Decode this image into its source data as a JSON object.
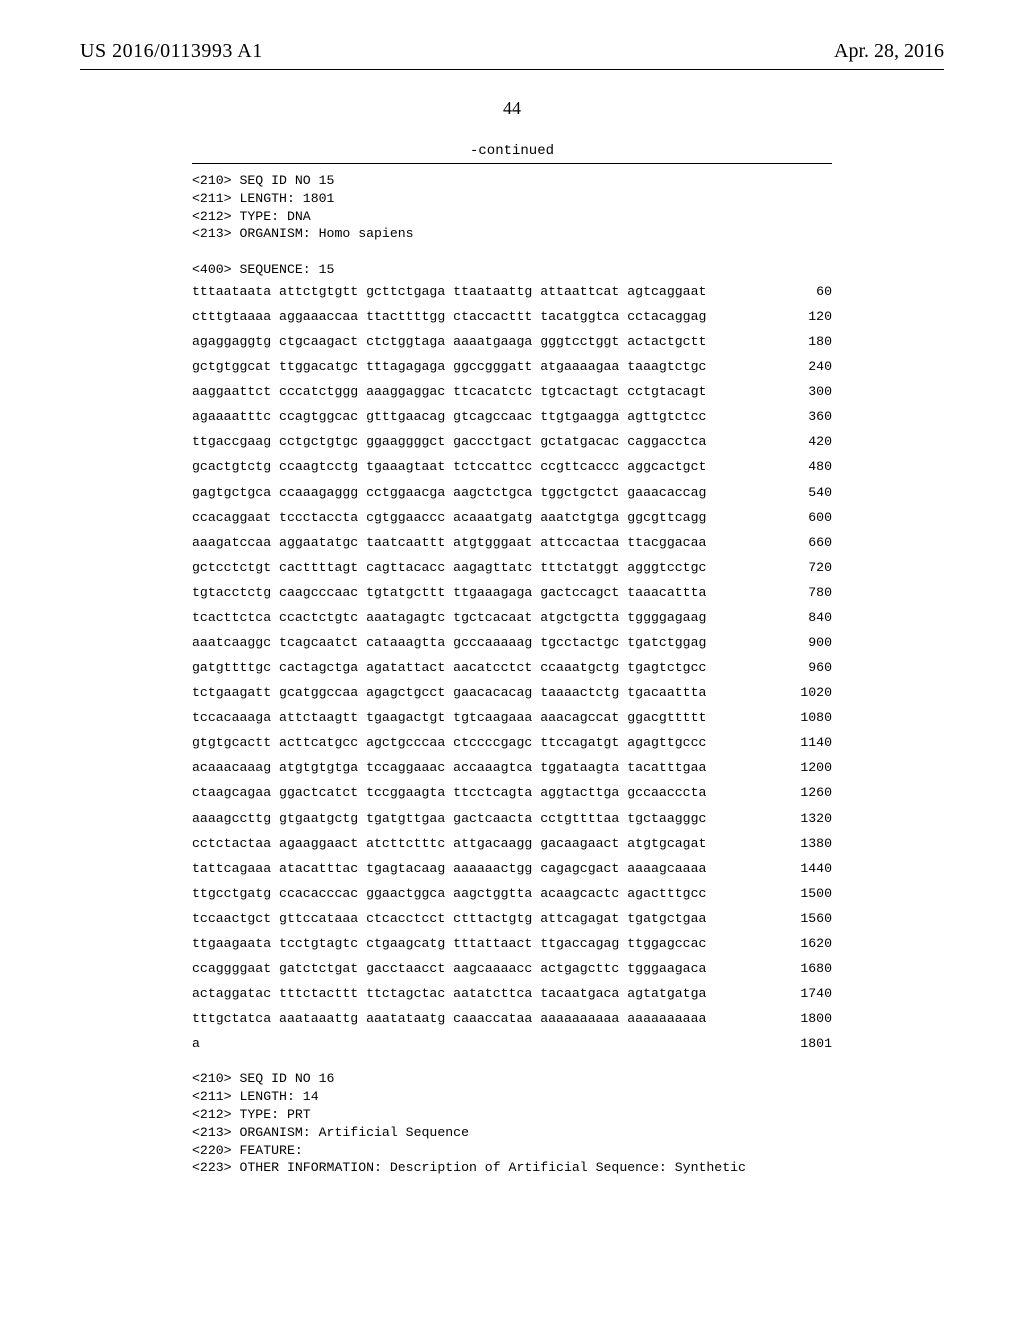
{
  "header": {
    "publication_id": "US 2016/0113993 A1",
    "publication_date": "Apr. 28, 2016"
  },
  "page_number": "44",
  "continued_label": "-continued",
  "meta_top": [
    "<210> SEQ ID NO 15",
    "<211> LENGTH: 1801",
    "<212> TYPE: DNA",
    "<213> ORGANISM: Homo sapiens",
    "",
    "<400> SEQUENCE: 15"
  ],
  "sequence": [
    {
      "txt": "tttaataata attctgtgtt gcttctgaga ttaataattg attaattcat agtcaggaat",
      "n": "60"
    },
    {
      "txt": "ctttgtaaaa aggaaaccaa ttacttttgg ctaccacttt tacatggtca cctacaggag",
      "n": "120"
    },
    {
      "txt": "agaggaggtg ctgcaagact ctctggtaga aaaatgaaga gggtcctggt actactgctt",
      "n": "180"
    },
    {
      "txt": "gctgtggcat ttggacatgc tttagagaga ggccgggatt atgaaaagaa taaagtctgc",
      "n": "240"
    },
    {
      "txt": "aaggaattct cccatctggg aaaggaggac ttcacatctc tgtcactagt cctgtacagt",
      "n": "300"
    },
    {
      "txt": "agaaaatttc ccagtggcac gtttgaacag gtcagccaac ttgtgaagga agttgtctcc",
      "n": "360"
    },
    {
      "txt": "ttgaccgaag cctgctgtgc ggaaggggct gaccctgact gctatgacac caggacctca",
      "n": "420"
    },
    {
      "txt": "gcactgtctg ccaagtcctg tgaaagtaat tctccattcc ccgttcaccc aggcactgct",
      "n": "480"
    },
    {
      "txt": "gagtgctgca ccaaagaggg cctggaacga aagctctgca tggctgctct gaaacaccag",
      "n": "540"
    },
    {
      "txt": "ccacaggaat tccctaccta cgtggaaccc acaaatgatg aaatctgtga ggcgttcagg",
      "n": "600"
    },
    {
      "txt": "aaagatccaa aggaatatgc taatcaattt atgtgggaat attccactaa ttacggacaa",
      "n": "660"
    },
    {
      "txt": "gctcctctgt cacttttagt cagttacacc aagagttatc tttctatggt agggtcctgc",
      "n": "720"
    },
    {
      "txt": "tgtacctctg caagcccaac tgtatgcttt ttgaaagaga gactccagct taaacattta",
      "n": "780"
    },
    {
      "txt": "tcacttctca ccactctgtc aaatagagtc tgctcacaat atgctgctta tggggagaag",
      "n": "840"
    },
    {
      "txt": "aaatcaaggc tcagcaatct cataaagtta gcccaaaaag tgcctactgc tgatctggag",
      "n": "900"
    },
    {
      "txt": "gatgttttgc cactagctga agatattact aacatcctct ccaaatgctg tgagtctgcc",
      "n": "960"
    },
    {
      "txt": "tctgaagatt gcatggccaa agagctgcct gaacacacag taaaactctg tgacaattta",
      "n": "1020"
    },
    {
      "txt": "tccacaaaga attctaagtt tgaagactgt tgtcaagaaa aaacagccat ggacgttttt",
      "n": "1080"
    },
    {
      "txt": "gtgtgcactt acttcatgcc agctgcccaa ctccccgagc ttccagatgt agagttgccc",
      "n": "1140"
    },
    {
      "txt": "acaaacaaag atgtgtgtga tccaggaaac accaaagtca tggataagta tacatttgaa",
      "n": "1200"
    },
    {
      "txt": "ctaagcagaa ggactcatct tccggaagta ttcctcagta aggtacttga gccaacccta",
      "n": "1260"
    },
    {
      "txt": "aaaagccttg gtgaatgctg tgatgttgaa gactcaacta cctgttttaa tgctaagggc",
      "n": "1320"
    },
    {
      "txt": "cctctactaa agaaggaact atcttctttc attgacaagg gacaagaact atgtgcagat",
      "n": "1380"
    },
    {
      "txt": "tattcagaaa atacatttac tgagtacaag aaaaaactgg cagagcgact aaaagcaaaa",
      "n": "1440"
    },
    {
      "txt": "ttgcctgatg ccacacccac ggaactggca aagctggtta acaagcactc agactttgcc",
      "n": "1500"
    },
    {
      "txt": "tccaactgct gttccataaa ctcacctcct ctttactgtg attcagagat tgatgctgaa",
      "n": "1560"
    },
    {
      "txt": "ttgaagaata tcctgtagtc ctgaagcatg tttattaact ttgaccagag ttggagccac",
      "n": "1620"
    },
    {
      "txt": "ccaggggaat gatctctgat gacctaacct aagcaaaacc actgagcttc tgggaagaca",
      "n": "1680"
    },
    {
      "txt": "actaggatac tttctacttt ttctagctac aatatcttca tacaatgaca agtatgatga",
      "n": "1740"
    },
    {
      "txt": "tttgctatca aaataaattg aaatataatg caaaccataa aaaaaaaaaa aaaaaaaaaa",
      "n": "1800"
    },
    {
      "txt": "a",
      "n": "1801"
    }
  ],
  "meta_bottom": [
    "<210> SEQ ID NO 16",
    "<211> LENGTH: 14",
    "<212> TYPE: PRT",
    "<213> ORGANISM: Artificial Sequence",
    "<220> FEATURE:",
    "<223> OTHER INFORMATION: Description of Artificial Sequence: Synthetic"
  ]
}
